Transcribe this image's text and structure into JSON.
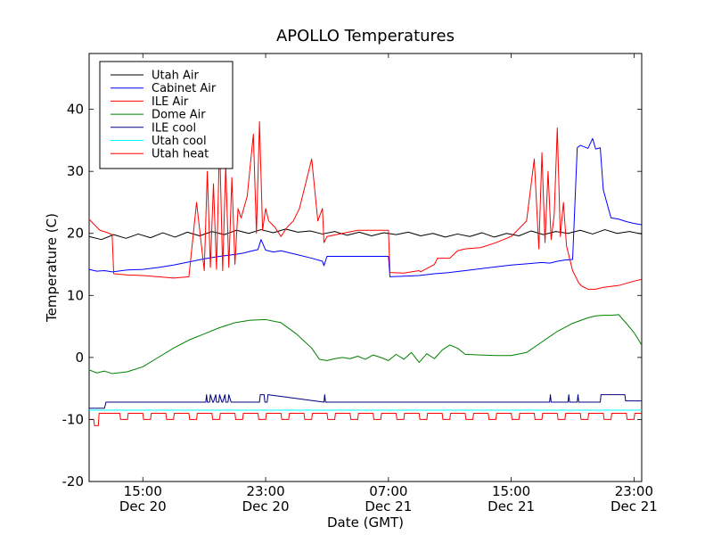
{
  "chart_data": {
    "type": "line",
    "title": "APOLLO Temperatures",
    "xlabel": "Date (GMT)",
    "ylabel": "Temperature (C)",
    "x_unit": "hours, Dec 20 00:00 GMT = 0",
    "xlim": [
      11.5,
      47.5
    ],
    "ylim": [
      -20,
      49
    ],
    "grid": false,
    "legend_position": "top-left",
    "x_ticks": [
      {
        "x": 15,
        "line1": "15:00",
        "line2": "Dec 20"
      },
      {
        "x": 23,
        "line1": "23:00",
        "line2": "Dec 20"
      },
      {
        "x": 31,
        "line1": "07:00",
        "line2": "Dec 21"
      },
      {
        "x": 39,
        "line1": "15:00",
        "line2": "Dec 21"
      },
      {
        "x": 47,
        "line1": "23:00",
        "line2": "Dec 21"
      }
    ],
    "y_ticks": [
      -20,
      -10,
      0,
      10,
      20,
      30,
      40
    ],
    "series": [
      {
        "name": "Utah Air",
        "color": "#000000",
        "x": [
          11.5,
          12.3,
          13.1,
          13.9,
          14.7,
          15.5,
          16.3,
          17.1,
          17.9,
          18.7,
          19.5,
          20.3,
          21.1,
          21.9,
          22.7,
          23.5,
          24.3,
          25.1,
          25.9,
          26.7,
          27.5,
          28.3,
          29.1,
          29.9,
          30.7,
          31.5,
          32.3,
          33.1,
          33.9,
          34.7,
          35.5,
          36.3,
          37.1,
          37.9,
          38.7,
          39.5,
          40.3,
          41.1,
          41.9,
          42.7,
          43.5,
          44.3,
          45.1,
          45.9,
          46.7,
          47.5
        ],
        "y": [
          19.5,
          19.0,
          19.8,
          19.2,
          19.9,
          19.3,
          20.1,
          19.4,
          20.2,
          19.6,
          20.3,
          19.8,
          20.5,
          20.0,
          20.6,
          20.1,
          20.7,
          20.2,
          20.4,
          19.9,
          20.3,
          19.7,
          20.2,
          19.6,
          20.1,
          19.8,
          20.2,
          19.6,
          20.0,
          19.4,
          19.9,
          19.5,
          20.1,
          19.4,
          20.0,
          19.6,
          20.4,
          19.8,
          20.3,
          20.0,
          20.5,
          19.9,
          20.6,
          20.0,
          20.3,
          19.9
        ]
      },
      {
        "name": "Cabinet Air",
        "color": "#0000ff",
        "x": [
          11.5,
          12.0,
          12.5,
          13.0,
          14.0,
          15.0,
          16.0,
          17.0,
          18.0,
          19.0,
          20.0,
          21.0,
          21.5,
          22.0,
          22.5,
          22.7,
          23.0,
          23.5,
          24.0,
          25.0,
          26.0,
          26.7,
          26.8,
          27.0,
          28.0,
          29.0,
          30.0,
          31.0,
          31.1,
          32.0,
          33.0,
          34.0,
          35.0,
          36.0,
          37.0,
          38.0,
          39.0,
          40.0,
          41.0,
          41.5,
          42.0,
          42.5,
          43.0,
          43.3,
          43.5,
          44.0,
          44.3,
          44.5,
          44.8,
          45.0,
          45.5,
          46.0,
          46.5,
          47.0,
          47.5
        ],
        "y": [
          14.2,
          13.9,
          14.0,
          13.8,
          14.1,
          14.2,
          14.5,
          14.9,
          15.4,
          15.9,
          16.3,
          16.6,
          16.8,
          17.1,
          17.4,
          19.0,
          17.3,
          17.0,
          17.2,
          16.6,
          16.0,
          15.5,
          14.8,
          16.3,
          16.3,
          16.3,
          16.3,
          16.3,
          13.0,
          13.1,
          13.2,
          13.5,
          13.7,
          14.0,
          14.3,
          14.6,
          14.9,
          15.1,
          15.3,
          15.2,
          15.5,
          15.7,
          15.8,
          33.8,
          34.2,
          33.7,
          35.3,
          33.6,
          33.8,
          27.0,
          22.5,
          22.3,
          21.9,
          21.6,
          21.4
        ]
      },
      {
        "name": "ILE Air",
        "color": "#ff0000",
        "x": [
          11.5,
          11.8,
          12.2,
          12.6,
          13.0,
          13.1,
          14.0,
          15.0,
          16.0,
          17.0,
          18.0,
          18.5,
          19.0,
          19.2,
          19.4,
          19.6,
          19.8,
          20.0,
          20.2,
          20.4,
          20.6,
          20.8,
          21.0,
          21.2,
          21.4,
          21.8,
          22.2,
          22.4,
          22.6,
          22.8,
          23.0,
          23.2,
          23.6,
          24.0,
          24.4,
          24.8,
          25.2,
          25.6,
          26.0,
          26.4,
          26.7,
          26.8,
          27.0,
          28.0,
          29.0,
          30.0,
          31.0,
          31.1,
          32.0,
          33.0,
          33.1,
          34.0,
          34.2,
          35.0,
          35.5,
          36.0,
          37.0,
          38.0,
          39.0,
          40.0,
          40.5,
          40.8,
          41.0,
          41.2,
          41.4,
          41.6,
          41.8,
          42.0,
          42.2,
          42.4,
          42.6,
          42.8,
          43.0,
          43.2,
          43.4,
          43.6,
          44.0,
          44.5,
          45.0,
          46.0,
          47.0,
          47.5
        ],
        "y": [
          22.3,
          21.5,
          20.5,
          20.2,
          19.8,
          13.5,
          13.3,
          13.2,
          13.0,
          12.8,
          13.0,
          25.0,
          14.0,
          30.0,
          14.5,
          28.0,
          14.2,
          35.0,
          14.0,
          31.0,
          14.5,
          29.0,
          15.0,
          24.0,
          22.5,
          26.0,
          36.0,
          20.0,
          38.0,
          20.5,
          24.0,
          22.0,
          21.0,
          19.5,
          21.0,
          22.0,
          24.0,
          28.0,
          32.0,
          22.0,
          24.0,
          18.5,
          19.5,
          20.0,
          20.5,
          20.5,
          20.5,
          13.7,
          13.6,
          14.0,
          13.8,
          15.0,
          16.0,
          16.0,
          17.2,
          17.5,
          17.7,
          18.5,
          19.5,
          22.0,
          32.0,
          17.5,
          33.0,
          18.5,
          30.0,
          19.0,
          23.0,
          37.0,
          19.5,
          25.0,
          18.0,
          16.0,
          14.0,
          13.0,
          12.0,
          11.5,
          11.0,
          11.0,
          11.3,
          11.6,
          12.3,
          12.6
        ]
      },
      {
        "name": "Dome Air",
        "color": "#008000",
        "x": [
          11.5,
          12.0,
          12.5,
          13.0,
          14.0,
          15.0,
          16.0,
          17.0,
          18.0,
          19.0,
          20.0,
          21.0,
          22.0,
          23.0,
          24.0,
          25.0,
          26.0,
          26.5,
          27.0,
          27.5,
          28.0,
          28.5,
          29.0,
          29.5,
          30.0,
          30.5,
          31.0,
          31.5,
          32.0,
          32.5,
          33.0,
          33.5,
          34.0,
          34.5,
          35.0,
          35.5,
          36.0,
          37.0,
          38.0,
          39.0,
          40.0,
          41.0,
          42.0,
          43.0,
          44.0,
          44.5,
          45.0,
          45.5,
          46.0,
          46.5,
          47.0,
          47.5
        ],
        "y": [
          -2.0,
          -2.5,
          -2.2,
          -2.6,
          -2.3,
          -1.5,
          0.0,
          1.5,
          2.8,
          3.8,
          4.8,
          5.6,
          6.0,
          6.1,
          5.6,
          3.8,
          1.5,
          -0.3,
          -0.5,
          -0.2,
          0.0,
          -0.2,
          0.2,
          -0.3,
          0.4,
          0.0,
          -0.5,
          0.5,
          -0.3,
          0.8,
          -0.8,
          0.6,
          -0.2,
          1.2,
          2.0,
          1.5,
          0.5,
          0.4,
          0.3,
          0.3,
          0.8,
          2.5,
          4.2,
          5.5,
          6.4,
          6.7,
          6.8,
          6.8,
          6.9,
          5.5,
          4.0,
          2.0
        ]
      },
      {
        "name": "ILE cool",
        "color": "#000080",
        "x": [
          11.5,
          12.5,
          12.6,
          19.1,
          19.15,
          19.2,
          19.35,
          19.4,
          19.55,
          19.6,
          19.75,
          19.8,
          19.95,
          20.0,
          20.15,
          20.2,
          20.35,
          20.4,
          20.55,
          20.6,
          20.75,
          20.8,
          22.6,
          22.65,
          22.9,
          22.95,
          23.1,
          23.15,
          26.8,
          26.85,
          26.9,
          41.5,
          41.55,
          41.6,
          42.7,
          42.75,
          42.8,
          43.3,
          43.35,
          43.4,
          44.8,
          44.85,
          46.4,
          46.45,
          47.5
        ],
        "y": [
          -8.2,
          -8.2,
          -7.2,
          -7.2,
          -6.0,
          -7.2,
          -7.2,
          -6.0,
          -7.2,
          -7.2,
          -6.0,
          -7.2,
          -7.2,
          -6.0,
          -7.2,
          -7.2,
          -6.0,
          -7.2,
          -7.2,
          -6.0,
          -7.2,
          -7.2,
          -7.2,
          -6.0,
          -6.0,
          -7.2,
          -7.2,
          -6.0,
          -7.2,
          -6.0,
          -7.2,
          -7.2,
          -6.0,
          -7.2,
          -7.2,
          -6.0,
          -7.2,
          -7.2,
          -6.0,
          -7.2,
          -7.2,
          -6.0,
          -6.0,
          -7.0,
          -7.0
        ]
      },
      {
        "name": "Utah cool",
        "color": "#00ffff",
        "x": [
          11.5,
          47.5
        ],
        "y": [
          -8.5,
          -8.5
        ]
      },
      {
        "name": "Utah heat",
        "color": "#ff0000",
        "x": [
          11.5,
          11.8,
          11.85,
          12.1,
          12.15,
          13.5,
          13.55,
          14.0,
          14.05,
          15.0,
          15.05,
          15.5,
          15.55,
          16.5,
          16.55,
          17.0,
          17.05,
          18.0,
          18.05,
          18.5,
          18.55,
          19.5,
          19.55,
          20.0,
          20.05,
          21.0,
          21.05,
          21.5,
          21.55,
          22.5,
          22.55,
          23.0,
          23.05,
          24.0,
          24.05,
          24.5,
          24.55,
          25.5,
          25.55,
          26.0,
          26.05,
          27.0,
          27.05,
          27.5,
          27.55,
          28.5,
          28.55,
          29.0,
          29.05,
          30.0,
          30.05,
          30.5,
          30.55,
          31.5,
          31.55,
          32.0,
          32.05,
          33.0,
          33.05,
          33.5,
          33.55,
          34.5,
          34.55,
          35.0,
          35.05,
          36.0,
          36.05,
          36.5,
          36.55,
          37.5,
          37.55,
          38.0,
          38.05,
          39.0,
          39.05,
          39.5,
          39.55,
          40.5,
          40.55,
          41.0,
          41.05,
          42.0,
          42.05,
          42.5,
          42.55,
          43.5,
          43.55,
          44.0,
          44.05,
          45.0,
          45.05,
          45.5,
          45.55,
          46.5,
          46.55,
          47.0,
          47.05,
          47.5
        ],
        "y": [
          -10.0,
          -10.0,
          -11.0,
          -11.0,
          -9.0,
          -9.0,
          -10.0,
          -10.0,
          -9.0,
          -9.0,
          -10.0,
          -10.0,
          -9.0,
          -9.0,
          -10.0,
          -10.0,
          -9.0,
          -9.0,
          -10.0,
          -10.0,
          -9.0,
          -9.0,
          -10.0,
          -10.0,
          -9.0,
          -9.0,
          -10.0,
          -10.0,
          -9.0,
          -9.0,
          -10.0,
          -10.0,
          -9.0,
          -9.0,
          -10.0,
          -10.0,
          -9.0,
          -9.0,
          -10.0,
          -10.0,
          -9.0,
          -9.0,
          -10.0,
          -10.0,
          -9.0,
          -9.0,
          -10.0,
          -10.0,
          -9.0,
          -9.0,
          -10.0,
          -10.0,
          -9.0,
          -9.0,
          -10.0,
          -10.0,
          -9.0,
          -9.0,
          -10.0,
          -10.0,
          -9.0,
          -9.0,
          -10.0,
          -10.0,
          -9.0,
          -9.0,
          -10.0,
          -10.0,
          -9.0,
          -9.0,
          -10.0,
          -10.0,
          -9.0,
          -9.0,
          -10.0,
          -10.0,
          -9.0,
          -9.0,
          -10.0,
          -10.0,
          -9.0,
          -9.0,
          -10.0,
          -10.0,
          -9.0,
          -9.0,
          -10.0,
          -10.0,
          -9.0,
          -9.0,
          -10.0,
          -10.0,
          -9.0,
          -9.0,
          -10.0,
          -10.0,
          -9.0,
          -9.0
        ]
      }
    ]
  }
}
